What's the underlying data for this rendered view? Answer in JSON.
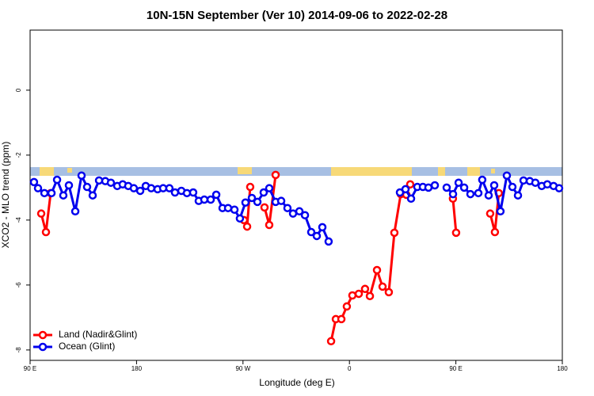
{
  "chart_data": {
    "type": "line",
    "title": "10N-15N September (Ver 10)   2014-09-06 to 2022-02-28",
    "xlabel": "Longitude (deg E)",
    "ylabel": "XCO2 - MLO trend (ppm)",
    "xlim": [
      90,
      540
    ],
    "ylim": [
      -8.32,
      1.85
    ],
    "xticks": [
      {
        "value": 90,
        "label": "90 E"
      },
      180,
      {
        "value": 270,
        "label": "90 W"
      },
      {
        "value": 360,
        "label": "0"
      },
      {
        "value": 450,
        "label": "90 E"
      },
      {
        "value": 540,
        "label": "180"
      }
    ],
    "yticks": [
      0,
      -2,
      -4,
      -6,
      -8
    ],
    "legend": "bottom-left",
    "series": [
      {
        "name": "Land (Nadir&Glint)",
        "color": "#ff0000",
        "x": [
          99.4,
          103.4,
          107.4,
          150,
          270.8,
          273.5,
          276.1,
          282,
          288.2,
          292.2,
          297.6,
          320,
          344.5,
          348.5,
          353.2,
          357.8,
          362.5,
          367.9,
          373.2,
          377.3,
          383.3,
          388.0,
          393.3,
          398.0,
          403.4,
          408.1,
          411.4,
          430,
          447.5,
          450.2,
          465,
          479.0,
          483.0,
          486.3
        ],
        "values": [
          -3.8,
          -4.37,
          -3.17,
          null,
          -4.0,
          -4.2,
          -2.98,
          null,
          -3.61,
          -4.15,
          -2.61,
          null,
          -7.73,
          -7.05,
          -7.05,
          -6.66,
          -6.32,
          -6.27,
          -6.12,
          -6.34,
          -5.54,
          -6.05,
          -6.22,
          -4.39,
          -3.2,
          -3.22,
          -2.9,
          null,
          -3.34,
          -4.39,
          null,
          -3.8,
          -4.37,
          -3.17
        ]
      },
      {
        "name": "Ocean (Glint)",
        "color": "#0000ee",
        "x": [
          93.3,
          96.7,
          102.1,
          108.1,
          112.8,
          118.1,
          122.8,
          128.2,
          133.5,
          138.2,
          142.9,
          148.3,
          153.6,
          158.3,
          163.7,
          168.3,
          173.0,
          177.7,
          183.1,
          187.8,
          192.4,
          197.8,
          202.5,
          207.8,
          212.5,
          217.9,
          222.6,
          227.9,
          232.6,
          237.3,
          242.7,
          247.4,
          252.7,
          257.4,
          262.8,
          267.4,
          272.1,
          277.5,
          282.2,
          287.5,
          292.2,
          297.6,
          302.3,
          307.6,
          312.3,
          317.7,
          322.4,
          327.7,
          332.4,
          337.1,
          342.4,
          370,
          402.7,
          407.4,
          412.1,
          417.4,
          422.1,
          426.8,
          432.2,
          437,
          442.2,
          447.6,
          452.3,
          457.0,
          462.3,
          469.0,
          472.3,
          477.7,
          482.4,
          487.7,
          493.1,
          497.8,
          502.5,
          507.2,
          512.5,
          517.2,
          522.6,
          527.3,
          532.6,
          537.3
        ],
        "values": [
          -2.83,
          -3.02,
          -3.17,
          -3.17,
          -2.76,
          -3.24,
          -2.93,
          -3.73,
          -2.63,
          -2.98,
          -3.24,
          -2.78,
          -2.8,
          -2.85,
          -2.95,
          -2.9,
          -2.95,
          -3.02,
          -3.1,
          -2.95,
          -3.02,
          -3.05,
          -3.02,
          -3.02,
          -3.15,
          -3.1,
          -3.17,
          -3.15,
          -3.41,
          -3.37,
          -3.37,
          -3.22,
          -3.63,
          -3.63,
          -3.68,
          -3.95,
          -3.46,
          -3.32,
          -3.44,
          -3.15,
          -3.02,
          -3.44,
          -3.41,
          -3.63,
          -3.8,
          -3.73,
          -3.85,
          -4.37,
          -4.49,
          -4.22,
          -4.66,
          null,
          -3.15,
          -3.05,
          -3.34,
          -2.98,
          -2.98,
          -3.0,
          -2.93,
          null,
          -3.0,
          -3.2,
          -2.85,
          -3.0,
          -3.2,
          -3.17,
          -2.76,
          -3.24,
          -2.93,
          -3.73,
          -2.63,
          -2.98,
          -3.24,
          -2.78,
          -2.8,
          -2.85,
          -2.95,
          -2.9,
          -2.95,
          -3.02
        ]
      }
    ]
  }
}
